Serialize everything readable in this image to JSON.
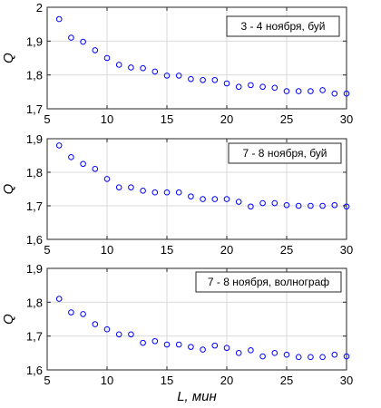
{
  "chart_data": [
    {
      "type": "scatter",
      "title": "",
      "legend": "3 - 4 ноября, буй",
      "legend_position": "top-right",
      "xlabel": "",
      "ylabel": "Q",
      "xlim": [
        5,
        30
      ],
      "ylim": [
        1.7,
        2.0
      ],
      "xticks": [
        "5",
        "10",
        "15",
        "20",
        "25",
        "30"
      ],
      "yticks": [
        "1,7",
        "1,8",
        "1,9",
        "2"
      ],
      "grid": true,
      "marker_color": "#0000ff",
      "x": [
        6,
        7,
        8,
        9,
        10,
        11,
        12,
        13,
        14,
        15,
        16,
        17,
        18,
        19,
        20,
        21,
        22,
        23,
        24,
        25,
        26,
        27,
        28,
        29,
        30
      ],
      "y": [
        1.965,
        1.91,
        1.898,
        1.873,
        1.85,
        1.83,
        1.822,
        1.82,
        1.81,
        1.798,
        1.798,
        1.788,
        1.785,
        1.785,
        1.775,
        1.765,
        1.77,
        1.765,
        1.762,
        1.752,
        1.752,
        1.752,
        1.755,
        1.745,
        1.745
      ]
    },
    {
      "type": "scatter",
      "title": "",
      "legend": "7 - 8 ноября, буй",
      "legend_position": "top-right",
      "xlabel": "",
      "ylabel": "Q",
      "xlim": [
        5,
        30
      ],
      "ylim": [
        1.6,
        1.9
      ],
      "xticks": [
        "5",
        "10",
        "15",
        "20",
        "25",
        "30"
      ],
      "yticks": [
        "1,6",
        "1,7",
        "1,8",
        "1,9"
      ],
      "grid": true,
      "marker_color": "#0000ff",
      "x": [
        6,
        7,
        8,
        9,
        10,
        11,
        12,
        13,
        14,
        15,
        16,
        17,
        18,
        19,
        20,
        21,
        22,
        23,
        24,
        25,
        26,
        27,
        28,
        29,
        30
      ],
      "y": [
        1.88,
        1.845,
        1.825,
        1.81,
        1.78,
        1.755,
        1.755,
        1.745,
        1.74,
        1.74,
        1.74,
        1.728,
        1.72,
        1.72,
        1.72,
        1.712,
        1.698,
        1.708,
        1.708,
        1.702,
        1.7,
        1.7,
        1.7,
        1.702,
        1.698
      ]
    },
    {
      "type": "scatter",
      "title": "",
      "legend": "7 - 8 ноября, волнограф",
      "legend_position": "top-right",
      "xlabel": "L, мин",
      "ylabel": "Q",
      "xlim": [
        5,
        30
      ],
      "ylim": [
        1.6,
        1.9
      ],
      "xticks": [
        "5",
        "10",
        "15",
        "20",
        "25",
        "30"
      ],
      "yticks": [
        "1,6",
        "1,7",
        "1,8",
        "1,9"
      ],
      "grid": true,
      "marker_color": "#0000ff",
      "x": [
        6,
        7,
        8,
        9,
        10,
        11,
        12,
        13,
        14,
        15,
        16,
        17,
        18,
        19,
        20,
        21,
        22,
        23,
        24,
        25,
        26,
        27,
        28,
        29,
        30
      ],
      "y": [
        1.81,
        1.77,
        1.765,
        1.735,
        1.72,
        1.705,
        1.705,
        1.68,
        1.685,
        1.675,
        1.675,
        1.668,
        1.66,
        1.672,
        1.665,
        1.65,
        1.658,
        1.64,
        1.65,
        1.645,
        1.638,
        1.638,
        1.638,
        1.645,
        1.64
      ]
    }
  ]
}
